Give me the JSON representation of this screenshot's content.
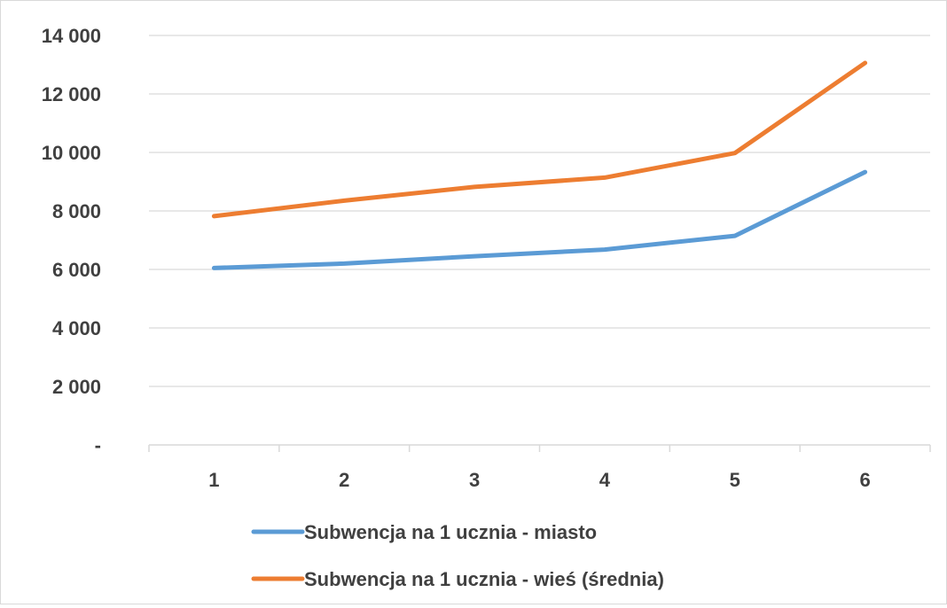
{
  "chart_data": {
    "type": "line",
    "categories": [
      "1",
      "2",
      "3",
      "4",
      "5",
      "6"
    ],
    "y_tick_labels": [
      "-",
      "2 000",
      "4 000",
      "6 000",
      "8 000",
      "10 000",
      "12 000",
      "14 000"
    ],
    "ylim": [
      0,
      14000
    ],
    "grid": true,
    "legend_position": "bottom",
    "series": [
      {
        "name": "Subwencja na 1 ucznia - miasto",
        "color": "#5b9bd5",
        "values": [
          6050,
          6200,
          6450,
          6680,
          7150,
          9330
        ]
      },
      {
        "name": "Subwencja na 1 ucznia - wieś (średnia)",
        "color": "#ed7d31",
        "values": [
          7820,
          8350,
          8820,
          9140,
          9980,
          13060
        ]
      }
    ]
  }
}
